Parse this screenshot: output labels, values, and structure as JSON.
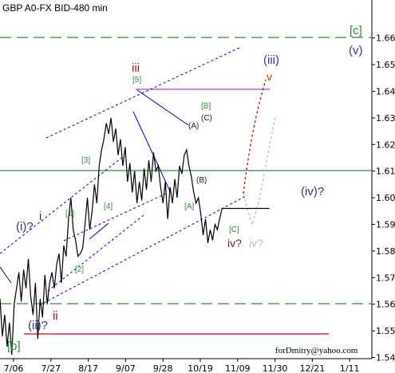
{
  "chart_data": {
    "type": "line",
    "title": "GBP A0-FX BID-480 min",
    "watermark": "forDmitry@yahoo.com",
    "x_ticks": [
      "7/06",
      "7/27",
      "8/17",
      "9/07",
      "9/28",
      "10/19",
      "11/09",
      "11/30",
      "12/21",
      "1/11"
    ],
    "ylim": [
      1.535,
      1.665
    ],
    "y_ticks": [
      "1.54",
      "1.55",
      "1.56",
      "1.57",
      "1.58",
      "1.59",
      "1.60",
      "1.61",
      "1.62",
      "1.63",
      "1.64",
      "1.65",
      "1.66"
    ],
    "grid": false,
    "series": [
      {
        "color": "#000000",
        "x": [
          0,
          2,
          4,
          6,
          8,
          10,
          12,
          14,
          16,
          18,
          20,
          22,
          24,
          26,
          28,
          30,
          32,
          34,
          36,
          38,
          40,
          42,
          44,
          46,
          48,
          50,
          52,
          54,
          56,
          58,
          60,
          62,
          64,
          66,
          68,
          70,
          72,
          74,
          76,
          78,
          80,
          82,
          84,
          86,
          88,
          90,
          92,
          94,
          96,
          98,
          100,
          102,
          104,
          106,
          108,
          110,
          112,
          114,
          116,
          118,
          120,
          122,
          124,
          126,
          128,
          130,
          132,
          134,
          136,
          138,
          140,
          142,
          144,
          146,
          148,
          150,
          152,
          154,
          156,
          158,
          160,
          162,
          164,
          166,
          168,
          170,
          172,
          174,
          176,
          178,
          180,
          182,
          184,
          186,
          188,
          190,
          192,
          194,
          196,
          198,
          200,
          202,
          204,
          206,
          208,
          210,
          212,
          214,
          216,
          218,
          220,
          222,
          224,
          226,
          228
        ],
        "y": [
          1.562,
          1.548,
          1.556,
          1.544,
          1.553,
          1.541,
          1.56,
          1.566,
          1.572,
          1.561,
          1.573,
          1.566,
          1.577,
          1.563,
          1.556,
          1.568,
          1.547,
          1.562,
          1.555,
          1.571,
          1.56,
          1.568,
          1.572,
          1.566,
          1.575,
          1.579,
          1.568,
          1.582,
          1.578,
          1.592,
          1.6,
          1.588,
          1.584,
          1.578,
          1.579,
          1.581,
          1.59,
          1.6,
          1.588,
          1.595,
          1.605,
          1.598,
          1.612,
          1.618,
          1.622,
          1.628,
          1.624,
          1.63,
          1.621,
          1.626,
          1.616,
          1.622,
          1.612,
          1.619,
          1.606,
          1.613,
          1.602,
          1.61,
          1.598,
          1.606,
          1.599,
          1.611,
          1.603,
          1.614,
          1.606,
          1.617,
          1.61,
          1.612,
          1.604,
          1.598,
          1.606,
          1.592,
          1.604,
          1.598,
          1.607,
          1.6,
          1.612,
          1.609,
          1.616,
          1.618,
          1.612,
          1.608,
          1.602,
          1.598,
          1.6,
          1.594,
          1.586,
          1.592,
          1.583,
          1.588,
          1.584,
          1.59,
          1.588,
          1.592,
          1.596,
          1.596,
          1.596,
          1.596,
          1.596,
          1.596,
          1.596,
          1.596,
          1.596,
          1.596,
          1.596,
          1.596,
          1.596,
          1.596,
          1.596,
          1.596,
          1.596,
          1.596,
          1.596,
          1.596,
          1.596
        ]
      }
    ],
    "levels": [
      {
        "y": 1.65,
        "style": "dashed",
        "color": "#2e8b3a"
      },
      {
        "y": 1.6,
        "style": "solid",
        "color": "#2e8b3a"
      },
      {
        "y": 1.55,
        "style": "dashed",
        "color": "#2e8b3a"
      },
      {
        "y": 1.5395,
        "style": "solid",
        "color": "#cc0000"
      },
      {
        "y": 1.631,
        "style": "solid",
        "color": "#cc33cc"
      }
    ],
    "annotations": [
      {
        "text": "[c]",
        "color": "#2e8b3a"
      },
      {
        "text": "(v)",
        "color": "#333399"
      },
      {
        "text": "(iii)",
        "color": "#333399"
      },
      {
        "text": "v",
        "color": "#cc3300"
      },
      {
        "text": "iii",
        "color": "#8b2323"
      },
      {
        "text": "[5]",
        "color": "#2e8b3a"
      },
      {
        "text": "[B]",
        "color": "#2e8b3a"
      },
      {
        "text": "(A)",
        "color": "#222222"
      },
      {
        "text": "(C)",
        "color": "#222222"
      },
      {
        "text": "(B)",
        "color": "#222222"
      },
      {
        "text": "[A]",
        "color": "#2e8b3a"
      },
      {
        "text": "[C]",
        "color": "#2e8b3a"
      },
      {
        "text": "(iv)?",
        "color": "#333399"
      },
      {
        "text": "iv?",
        "color": "#8b2323"
      },
      {
        "text": "iv?",
        "color": "#bbbbbb"
      },
      {
        "text": "[3]",
        "color": "#2e8b3a"
      },
      {
        "text": "[4]",
        "color": "#2e8b3a"
      },
      {
        "text": "[1]",
        "color": "#2e8b3a"
      },
      {
        "text": "[2]",
        "color": "#2e8b3a"
      },
      {
        "text": "(i)?",
        "color": "#333399"
      },
      {
        "text": "i",
        "color": "#8b2323"
      },
      {
        "text": "(ii)?",
        "color": "#333399"
      },
      {
        "text": "ii",
        "color": "#8b2323"
      },
      {
        "text": "[b]",
        "color": "#2e8b3a"
      }
    ]
  }
}
